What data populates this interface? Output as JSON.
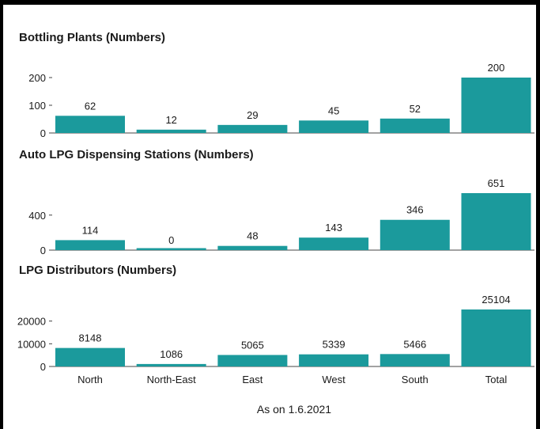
{
  "chart_data": [
    {
      "type": "bar",
      "title": "Bottling Plants (Numbers)",
      "categories": [
        "North",
        "North-East",
        "East",
        "West",
        "South",
        "Total"
      ],
      "values": [
        62,
        12,
        29,
        45,
        52,
        200
      ],
      "yticks": [
        0,
        100,
        200
      ],
      "ylim": [
        0,
        200
      ],
      "color": "#1b9a9c"
    },
    {
      "type": "bar",
      "title": "Auto LPG Dispensing Stations (Numbers)",
      "categories": [
        "North",
        "North-East",
        "East",
        "West",
        "South",
        "Total"
      ],
      "values": [
        114,
        0,
        48,
        143,
        346,
        651
      ],
      "yticks": [
        0,
        400
      ],
      "ylim": [
        0,
        651
      ],
      "color": "#1b9a9c"
    },
    {
      "type": "bar",
      "title": "LPG Distributors (Numbers)",
      "categories": [
        "North",
        "North-East",
        "East",
        "West",
        "South",
        "Total"
      ],
      "values": [
        8148,
        1086,
        5065,
        5339,
        5466,
        25104
      ],
      "yticks": [
        0,
        10000,
        20000
      ],
      "ylim": [
        0,
        25104
      ],
      "color": "#1b9a9c"
    }
  ],
  "caption": "As on 1.6.2021"
}
